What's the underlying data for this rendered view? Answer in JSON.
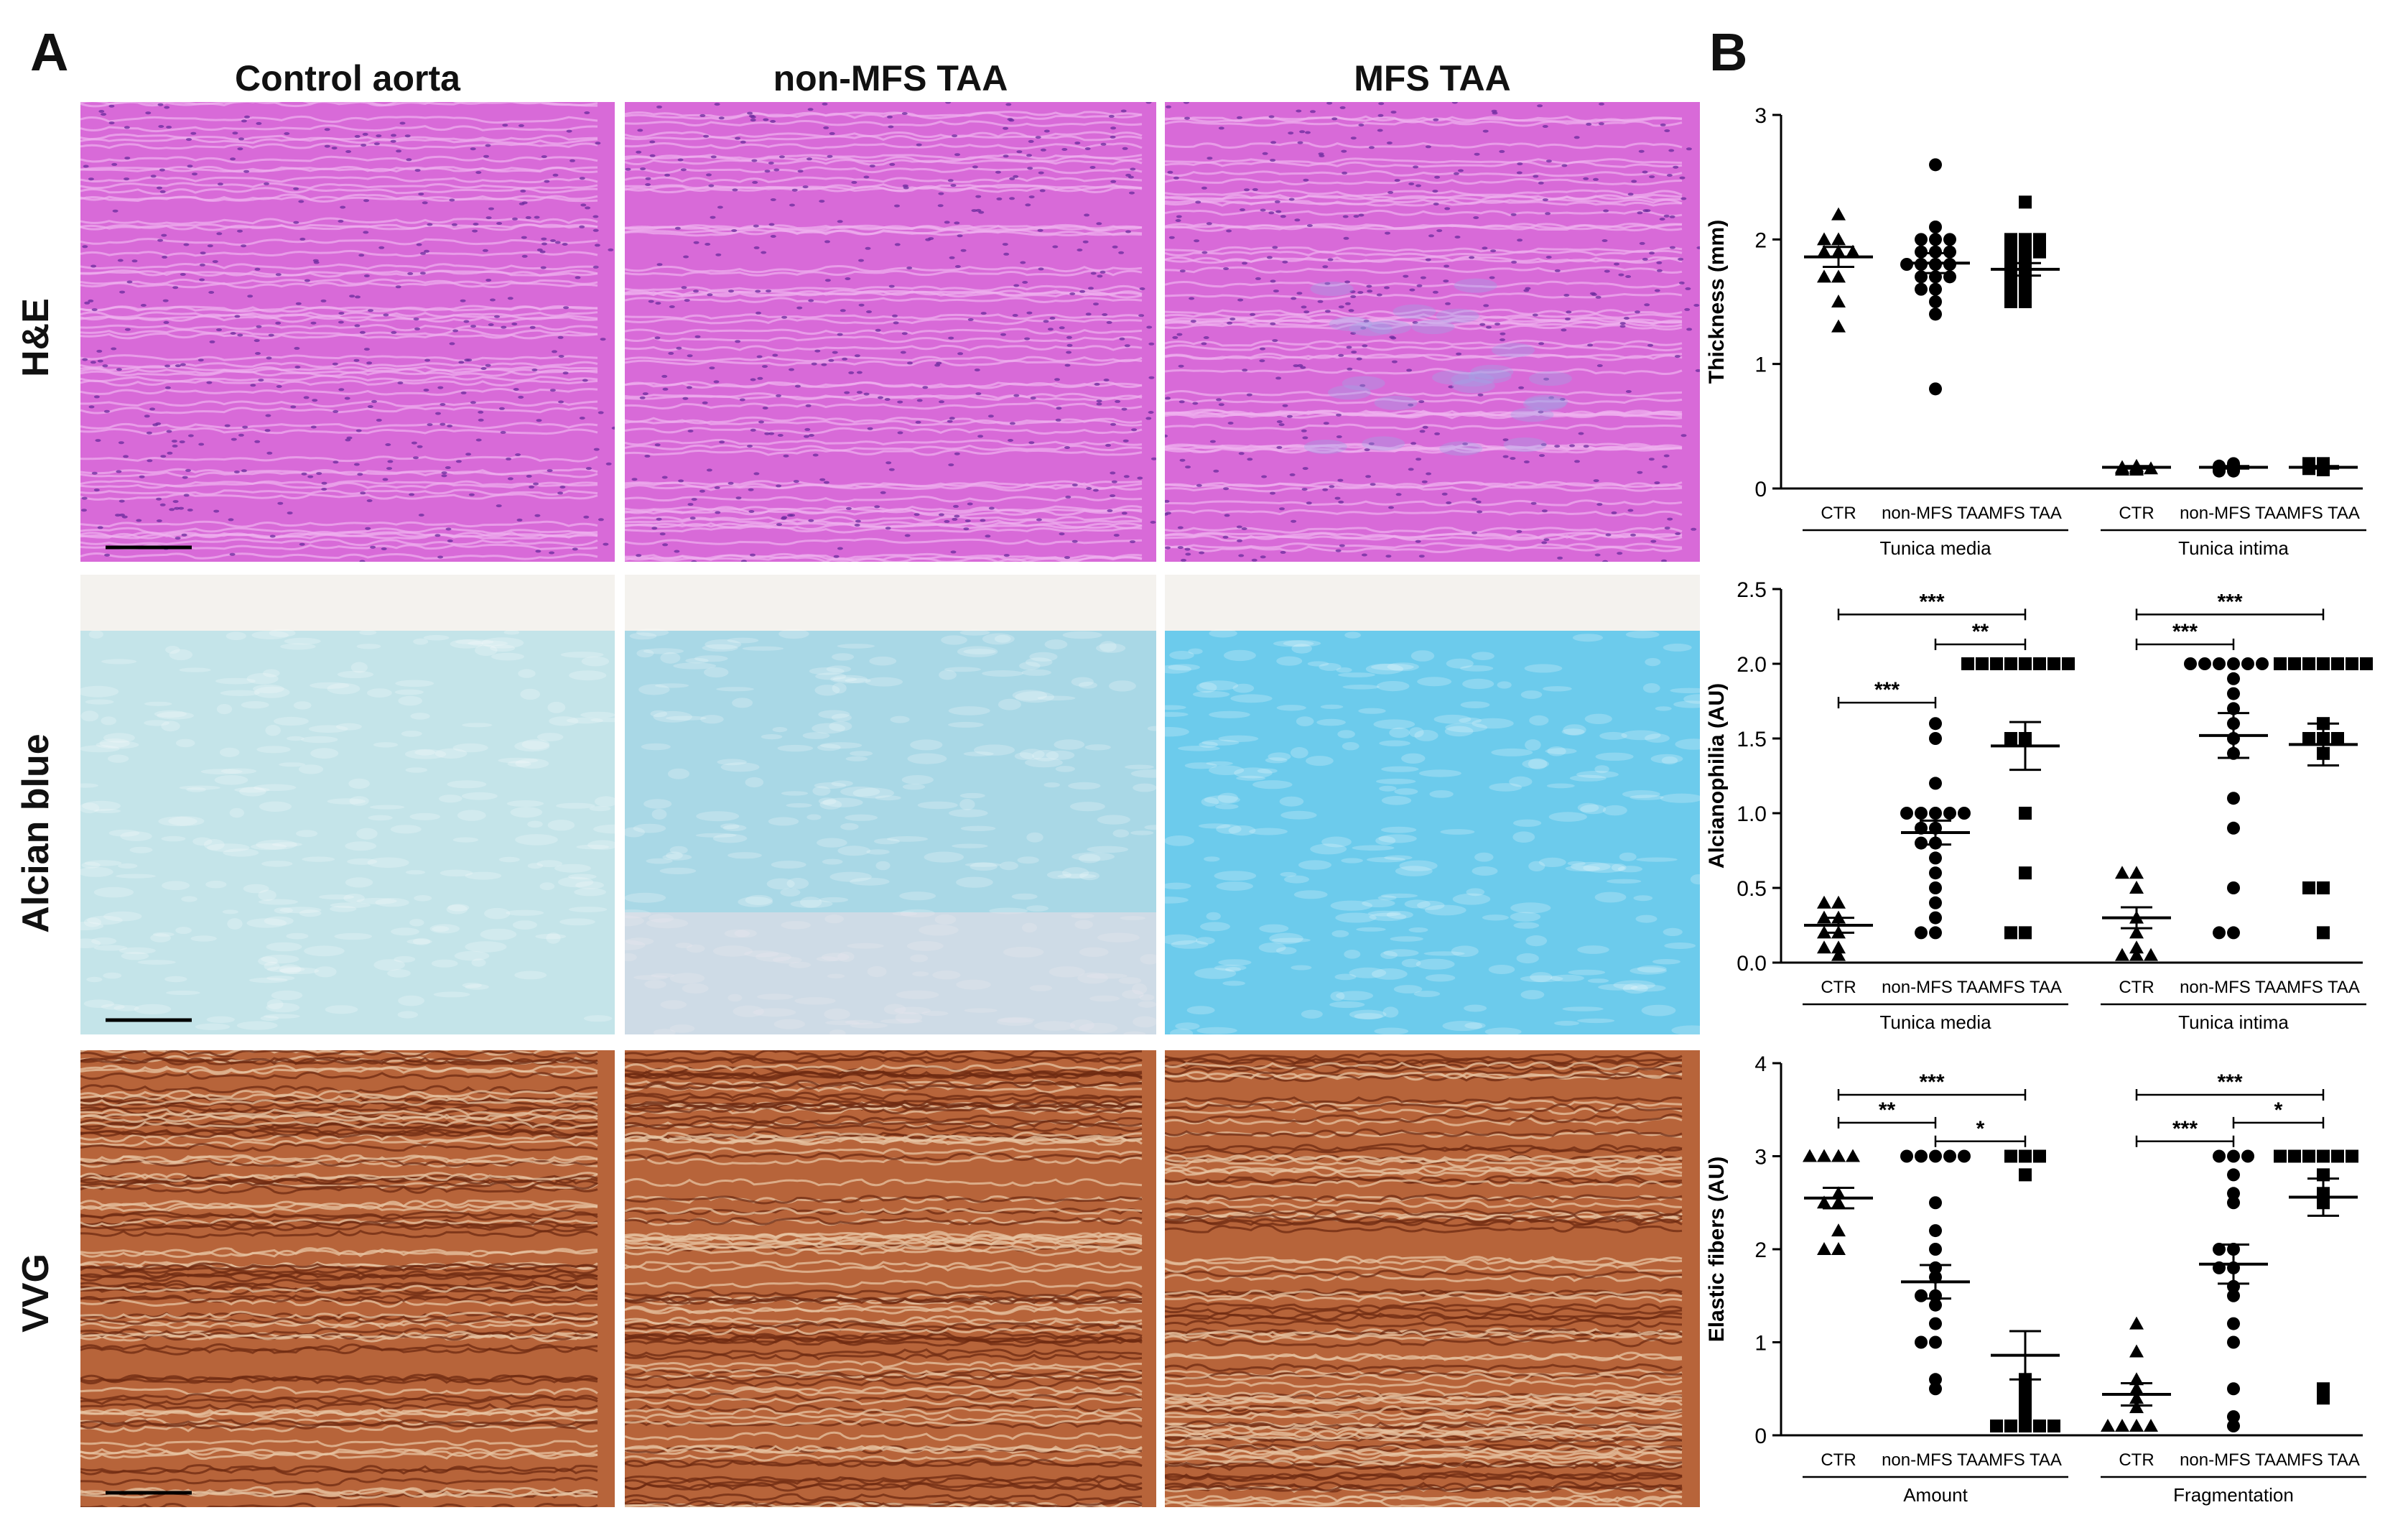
{
  "panel_a": {
    "letter": "A",
    "columns": [
      "Control aorta",
      "non-MFS TAA",
      "MFS TAA"
    ],
    "rows": [
      "H&E",
      "Alcian blue",
      "VVG"
    ]
  },
  "panel_b": {
    "letter": "B"
  },
  "colors": {
    "he": "#d86ad8",
    "alcian_control": "#c4e4e9",
    "alcian_nonmfs": "#a9d8e6",
    "alcian_mfs": "#6ccbec",
    "vvg": "#b7643a"
  },
  "chart_data": [
    {
      "type": "scatter",
      "ylabel": "Thickness (mm)",
      "ylim": [
        0,
        3
      ],
      "yticks": [
        0,
        1,
        2,
        3
      ],
      "categories": [
        "CTR",
        "non-MFS TAA",
        "MFS TAA",
        "CTR",
        "non-MFS TAA",
        "MFS TAA"
      ],
      "groups": [
        "Tunica media",
        "Tunica intima"
      ],
      "markers": [
        "triangle",
        "circle",
        "square",
        "triangle",
        "circle",
        "square"
      ],
      "means": [
        1.86,
        1.81,
        1.76,
        0.17,
        0.17,
        0.17
      ],
      "sem": [
        0.08,
        0.08,
        0.05,
        0.01,
        0.01,
        0.01
      ],
      "points": [
        [
          2.2,
          2.0,
          2.0,
          1.9,
          1.9,
          1.9,
          1.7,
          1.7,
          1.5,
          1.3
        ],
        [
          2.6,
          2.1,
          2.0,
          2.0,
          2.0,
          1.9,
          1.9,
          1.9,
          1.8,
          1.8,
          1.8,
          1.8,
          1.7,
          1.7,
          1.7,
          1.6,
          1.6,
          1.5,
          1.4,
          0.8
        ],
        [
          2.3,
          2.0,
          2.0,
          2.0,
          1.9,
          1.9,
          1.9,
          1.8,
          1.8,
          1.7,
          1.7,
          1.6,
          1.6,
          1.5,
          1.5
        ],
        [
          0.18,
          0.17,
          0.17,
          0.16,
          0.16,
          0.16,
          0.15,
          0.15
        ],
        [
          0.2,
          0.19,
          0.18,
          0.18,
          0.17,
          0.17,
          0.16,
          0.16,
          0.15,
          0.14,
          0.14
        ],
        [
          0.2,
          0.2,
          0.19,
          0.18,
          0.18,
          0.17,
          0.17,
          0.16,
          0.16,
          0.15
        ]
      ],
      "significance": []
    },
    {
      "type": "scatter",
      "ylabel": "Alcianophilia (AU)",
      "ylim": [
        0,
        2.5
      ],
      "yticks": [
        0.0,
        0.5,
        1.0,
        1.5,
        2.0,
        2.5
      ],
      "categories": [
        "CTR",
        "non-MFS TAA",
        "MFS TAA",
        "CTR",
        "non-MFS TAA",
        "MFS TAA"
      ],
      "groups": [
        "Tunica media",
        "Tunica intima"
      ],
      "markers": [
        "triangle",
        "circle",
        "square",
        "triangle",
        "circle",
        "square"
      ],
      "means": [
        0.25,
        0.87,
        1.45,
        0.3,
        1.52,
        1.46
      ],
      "sem": [
        0.05,
        0.08,
        0.16,
        0.07,
        0.15,
        0.14
      ],
      "points": [
        [
          0.4,
          0.4,
          0.3,
          0.3,
          0.2,
          0.2,
          0.1,
          0.1,
          0.05
        ],
        [
          1.6,
          1.5,
          1.2,
          1.0,
          1.0,
          1.0,
          1.0,
          1.0,
          0.9,
          0.9,
          0.8,
          0.8,
          0.7,
          0.6,
          0.5,
          0.4,
          0.3,
          0.2,
          0.2
        ],
        [
          2.0,
          2.0,
          2.0,
          2.0,
          2.0,
          2.0,
          2.0,
          2.0,
          1.5,
          1.5,
          1.0,
          0.6,
          0.2,
          0.2
        ],
        [
          0.6,
          0.6,
          0.5,
          0.3,
          0.2,
          0.1,
          0.05,
          0.05,
          0.05
        ],
        [
          2.0,
          2.0,
          2.0,
          2.0,
          2.0,
          2.0,
          1.9,
          1.8,
          1.7,
          1.6,
          1.5,
          1.4,
          1.1,
          0.9,
          0.5,
          0.2,
          0.2
        ],
        [
          2.0,
          2.0,
          2.0,
          2.0,
          2.0,
          2.0,
          2.0,
          1.6,
          1.5,
          1.5,
          1.5,
          1.4,
          0.5,
          0.5,
          0.2
        ]
      ],
      "significance": [
        {
          "from": 0,
          "to": 2,
          "label": "***",
          "y": 2.33
        },
        {
          "from": 1,
          "to": 2,
          "label": "**",
          "y": 2.13
        },
        {
          "from": 0,
          "to": 1,
          "label": "***",
          "y": 1.74
        },
        {
          "from": 3,
          "to": 5,
          "label": "***",
          "y": 2.33
        },
        {
          "from": 3,
          "to": 4,
          "label": "***",
          "y": 2.13
        }
      ]
    },
    {
      "type": "scatter",
      "ylabel": "Elastic fibers (AU)",
      "ylim": [
        0,
        4
      ],
      "yticks": [
        0,
        1,
        2,
        3,
        4
      ],
      "categories": [
        "CTR",
        "non-MFS TAA",
        "MFS TAA",
        "CTR",
        "non-MFS TAA",
        "MFS TAA"
      ],
      "groups": [
        "Amount",
        "Fragmentation"
      ],
      "markers": [
        "triangle",
        "circle",
        "square",
        "triangle",
        "circle",
        "square"
      ],
      "means": [
        2.55,
        1.65,
        0.86,
        0.44,
        1.84,
        2.56
      ],
      "sem": [
        0.11,
        0.18,
        0.26,
        0.12,
        0.21,
        0.2
      ],
      "points": [
        [
          3.0,
          3.0,
          3.0,
          3.0,
          2.6,
          2.5,
          2.5,
          2.2,
          2.0,
          2.0
        ],
        [
          3.0,
          3.0,
          3.0,
          3.0,
          3.0,
          2.5,
          2.2,
          2.0,
          1.8,
          1.7,
          1.5,
          1.5,
          1.4,
          1.2,
          1.0,
          1.0,
          0.6,
          0.5
        ],
        [
          3.0,
          3.0,
          3.0,
          2.8,
          0.6,
          0.5,
          0.4,
          0.3,
          0.2,
          0.1,
          0.1,
          0.1,
          0.1,
          0.1
        ],
        [
          1.2,
          0.9,
          0.6,
          0.5,
          0.4,
          0.3,
          0.1,
          0.1,
          0.1,
          0.1
        ],
        [
          3.0,
          3.0,
          3.0,
          2.8,
          2.6,
          2.5,
          2.0,
          2.0,
          1.8,
          1.8,
          1.6,
          1.5,
          1.2,
          1.0,
          0.5,
          0.2,
          0.1
        ],
        [
          3.0,
          3.0,
          3.0,
          3.0,
          3.0,
          3.0,
          2.8,
          2.6,
          2.5,
          0.5,
          0.4
        ]
      ],
      "significance": [
        {
          "from": 0,
          "to": 2,
          "label": "***",
          "y": 3.66
        },
        {
          "from": 0,
          "to": 1,
          "label": "**",
          "y": 3.36
        },
        {
          "from": 1,
          "to": 2,
          "label": "*",
          "y": 3.16
        },
        {
          "from": 3,
          "to": 5,
          "label": "***",
          "y": 3.66
        },
        {
          "from": 4,
          "to": 5,
          "label": "*",
          "y": 3.36
        },
        {
          "from": 3,
          "to": 4,
          "label": "***",
          "y": 3.16
        }
      ]
    }
  ]
}
